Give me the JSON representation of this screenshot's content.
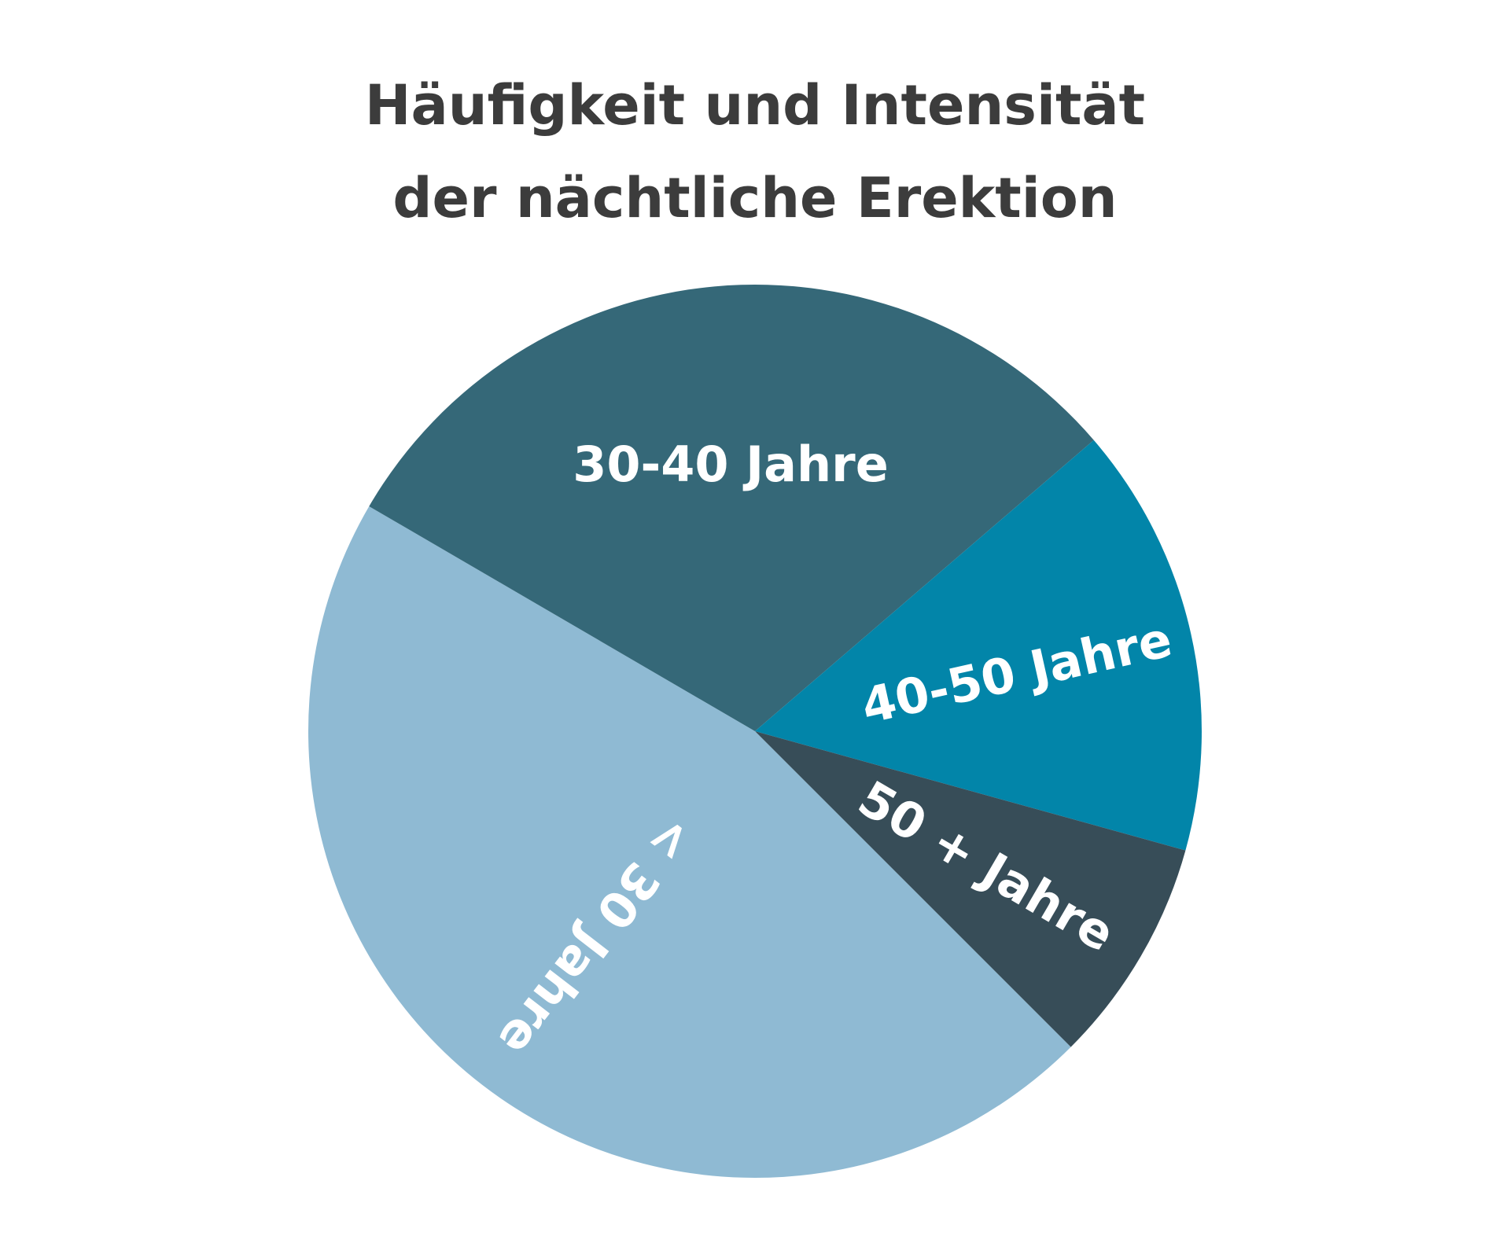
{
  "chart_data": {
    "type": "pie",
    "title": [
      "Häufigkeit und Intensität",
      "der nächtliche Erektion"
    ],
    "slices": [
      {
        "label": "< 30 Jahre",
        "value": 45.9,
        "color": "#8fbad3"
      },
      {
        "label": "30-40 Jahre",
        "value": 30.3,
        "color": "#356878"
      },
      {
        "label": "40-50 Jahre",
        "value": 15.6,
        "color": "#0285a9"
      },
      {
        "label": "50 + Jahre",
        "value": 8.2,
        "color": "#374d58"
      }
    ]
  }
}
